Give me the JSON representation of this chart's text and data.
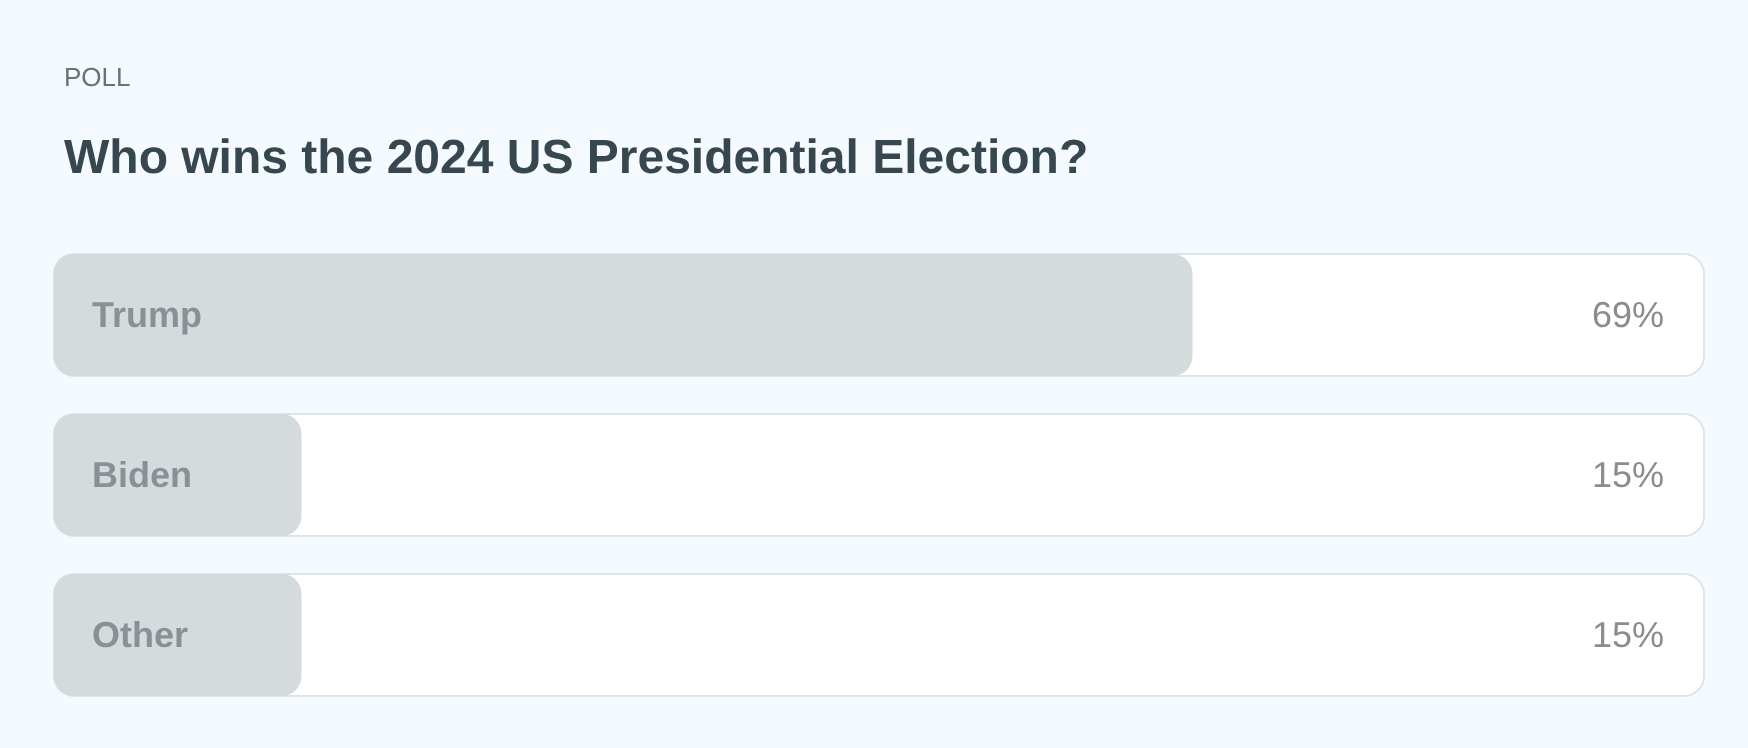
{
  "chart_data": {
    "type": "bar",
    "orientation": "horizontal",
    "subtitle": "POLL",
    "title": "Who wins the 2024 US Presidential Election?",
    "categories": [
      "Trump",
      "Biden",
      "Other"
    ],
    "values": [
      69,
      15,
      15
    ],
    "value_labels": [
      "69%",
      "15%",
      "15%"
    ],
    "color": "#d5dadd",
    "xlim": [
      0,
      100
    ],
    "tick_labels": "y"
  }
}
